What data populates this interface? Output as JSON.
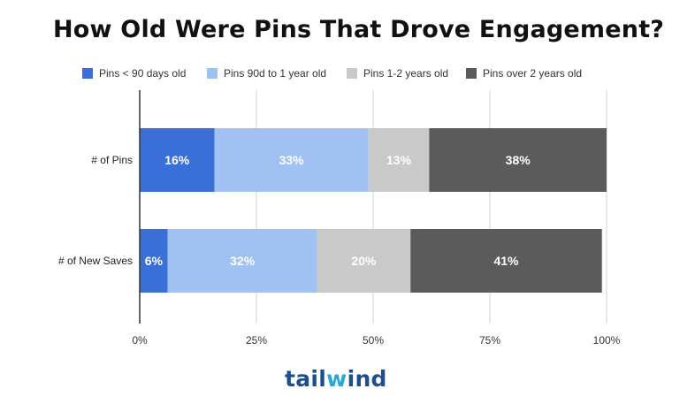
{
  "chart_data": {
    "type": "bar",
    "orientation": "horizontal",
    "stacked": true,
    "percent_stacked": true,
    "title": "How Old Were Pins That Drove Engagement?",
    "categories": [
      "# of Pins",
      "# of New Saves"
    ],
    "series": [
      {
        "name": "Pins < 90 days old",
        "color": "#3a6fd8",
        "values": [
          16,
          6
        ],
        "labels": [
          "16%",
          "6%"
        ]
      },
      {
        "name": "Pins 90d to 1 year old",
        "color": "#a1c1f3",
        "values": [
          33,
          32
        ],
        "labels": [
          "33%",
          "32%"
        ]
      },
      {
        "name": "Pins 1-2 years old",
        "color": "#c9c9c9",
        "values": [
          13,
          20
        ],
        "labels": [
          "13%",
          "20%"
        ]
      },
      {
        "name": "Pins over 2 years old",
        "color": "#5b5b5b",
        "values": [
          38,
          41
        ],
        "labels": [
          "38%",
          "41%"
        ]
      }
    ],
    "xlim": [
      0,
      100
    ],
    "xticks": [
      0,
      25,
      50,
      75,
      100
    ],
    "xtick_labels": [
      "0%",
      "25%",
      "50%",
      "75%",
      "100%"
    ],
    "grid": true,
    "legend": "top"
  },
  "brand": {
    "text": "tailwind",
    "color": "#1f4e8c",
    "accent": "#2aa5d8"
  }
}
